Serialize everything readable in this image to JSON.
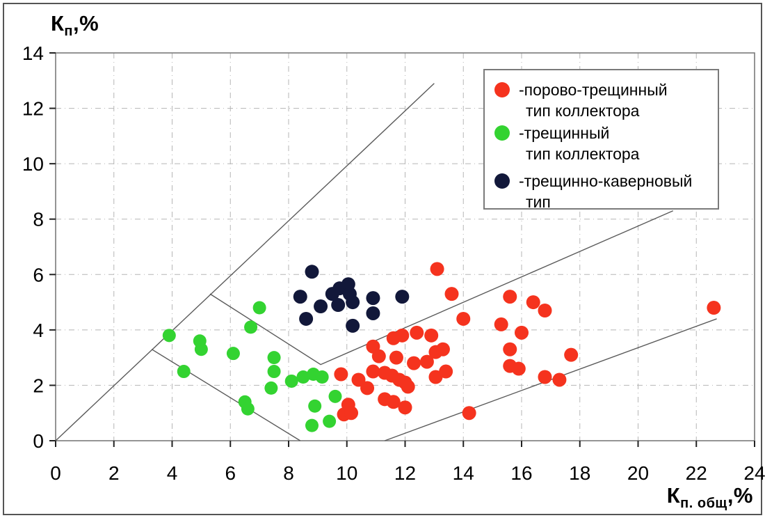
{
  "figure": {
    "y_axis_title": {
      "base": "К",
      "sub": "п",
      "rest": ",%"
    },
    "x_axis_title": {
      "base": "К",
      "sub": "п. общ",
      "rest": ",%"
    }
  },
  "legend": {
    "items": [
      {
        "color": "#f5331e",
        "line1": "-порово-трещинный",
        "line2": "тип коллектора"
      },
      {
        "color": "#33d331",
        "line1": "-трещинный",
        "line2": "тип коллектора"
      },
      {
        "color": "#12183a",
        "line1": "-трещинно-каверновый",
        "line2": "тип"
      }
    ]
  },
  "chart_data": {
    "type": "scatter",
    "xlabel": "Кп. общ,%",
    "ylabel": "Кп,%",
    "xlim": [
      0,
      24
    ],
    "ylim": [
      0,
      14
    ],
    "x_ticks": [
      0,
      2,
      4,
      6,
      8,
      10,
      12,
      14,
      16,
      18,
      20,
      22,
      24
    ],
    "y_ticks": [
      0,
      2,
      4,
      6,
      8,
      10,
      12,
      14
    ],
    "grid": true,
    "grid_style": "dash-dot",
    "legend_position": "top-right inside",
    "series": [
      {
        "name": "порово-трещинный тип коллектора",
        "color": "#f5331e",
        "dot_radius": 10,
        "points": [
          [
            9.8,
            2.4
          ],
          [
            9.9,
            0.95
          ],
          [
            10.05,
            1.3
          ],
          [
            10.15,
            1.0
          ],
          [
            10.4,
            2.2
          ],
          [
            10.7,
            1.9
          ],
          [
            10.9,
            3.4
          ],
          [
            10.9,
            2.5
          ],
          [
            11.1,
            3.05
          ],
          [
            11.3,
            2.45
          ],
          [
            11.55,
            2.35
          ],
          [
            11.3,
            1.5
          ],
          [
            11.6,
            1.4
          ],
          [
            11.6,
            3.7
          ],
          [
            11.9,
            3.8
          ],
          [
            11.7,
            3.0
          ],
          [
            11.8,
            2.2
          ],
          [
            12.0,
            2.1
          ],
          [
            12.1,
            1.95
          ],
          [
            12.0,
            1.2
          ],
          [
            12.3,
            2.8
          ],
          [
            12.75,
            2.85
          ],
          [
            12.4,
            3.9
          ],
          [
            12.9,
            3.8
          ],
          [
            13.05,
            3.2
          ],
          [
            13.3,
            3.3
          ],
          [
            13.05,
            2.3
          ],
          [
            13.4,
            2.5
          ],
          [
            13.1,
            6.2
          ],
          [
            13.6,
            5.3
          ],
          [
            14.0,
            4.4
          ],
          [
            14.2,
            1.0
          ],
          [
            15.3,
            4.2
          ],
          [
            15.6,
            5.2
          ],
          [
            15.6,
            3.3
          ],
          [
            15.6,
            2.7
          ],
          [
            15.9,
            2.6
          ],
          [
            16.0,
            3.9
          ],
          [
            16.4,
            5.0
          ],
          [
            16.8,
            4.7
          ],
          [
            16.8,
            2.3
          ],
          [
            17.3,
            2.2
          ],
          [
            17.7,
            3.1
          ],
          [
            22.6,
            4.8
          ]
        ]
      },
      {
        "name": "трещинный тип коллектора",
        "color": "#33d331",
        "dot_radius": 9.5,
        "points": [
          [
            3.9,
            3.8
          ],
          [
            4.4,
            2.5
          ],
          [
            4.95,
            3.6
          ],
          [
            5.0,
            3.3
          ],
          [
            6.1,
            3.15
          ],
          [
            6.7,
            4.1
          ],
          [
            7.0,
            4.8
          ],
          [
            6.5,
            1.4
          ],
          [
            6.6,
            1.15
          ],
          [
            7.5,
            3.0
          ],
          [
            7.5,
            2.5
          ],
          [
            7.4,
            1.9
          ],
          [
            8.1,
            2.15
          ],
          [
            8.5,
            2.3
          ],
          [
            8.85,
            2.4
          ],
          [
            9.15,
            2.3
          ],
          [
            8.9,
            1.25
          ],
          [
            9.6,
            1.6
          ],
          [
            8.8,
            0.55
          ],
          [
            9.4,
            0.7
          ]
        ]
      },
      {
        "name": "трещинно-каверновый тип",
        "color": "#12183a",
        "dot_radius": 10,
        "points": [
          [
            8.4,
            5.2
          ],
          [
            8.8,
            6.1
          ],
          [
            8.6,
            4.4
          ],
          [
            9.1,
            4.85
          ],
          [
            9.5,
            5.3
          ],
          [
            9.75,
            5.5
          ],
          [
            9.7,
            4.9
          ],
          [
            10.05,
            5.65
          ],
          [
            10.1,
            5.3
          ],
          [
            10.2,
            5.0
          ],
          [
            10.2,
            4.15
          ],
          [
            10.9,
            5.15
          ],
          [
            10.9,
            4.6
          ],
          [
            11.9,
            5.2
          ]
        ]
      }
    ],
    "boundary_lines": [
      {
        "name": "line-y-equals-x",
        "points": [
          [
            0,
            0
          ],
          [
            13,
            12.9
          ]
        ]
      },
      {
        "name": "upper-zone-boundary",
        "points": [
          [
            5.3,
            5.3
          ],
          [
            9.1,
            2.75
          ],
          [
            21.2,
            8.3
          ]
        ]
      },
      {
        "name": "left-zone-boundary",
        "points": [
          [
            3.3,
            3.3
          ],
          [
            8.4,
            0
          ]
        ]
      },
      {
        "name": "lower-zone-boundary",
        "points": [
          [
            11.3,
            0
          ],
          [
            22.7,
            4.4
          ]
        ]
      }
    ]
  },
  "colors": {
    "grid": "#b5b5b5",
    "boundary_line": "#5a5a5a",
    "plot_border": "#7a7a7a",
    "tick": "#222222"
  }
}
